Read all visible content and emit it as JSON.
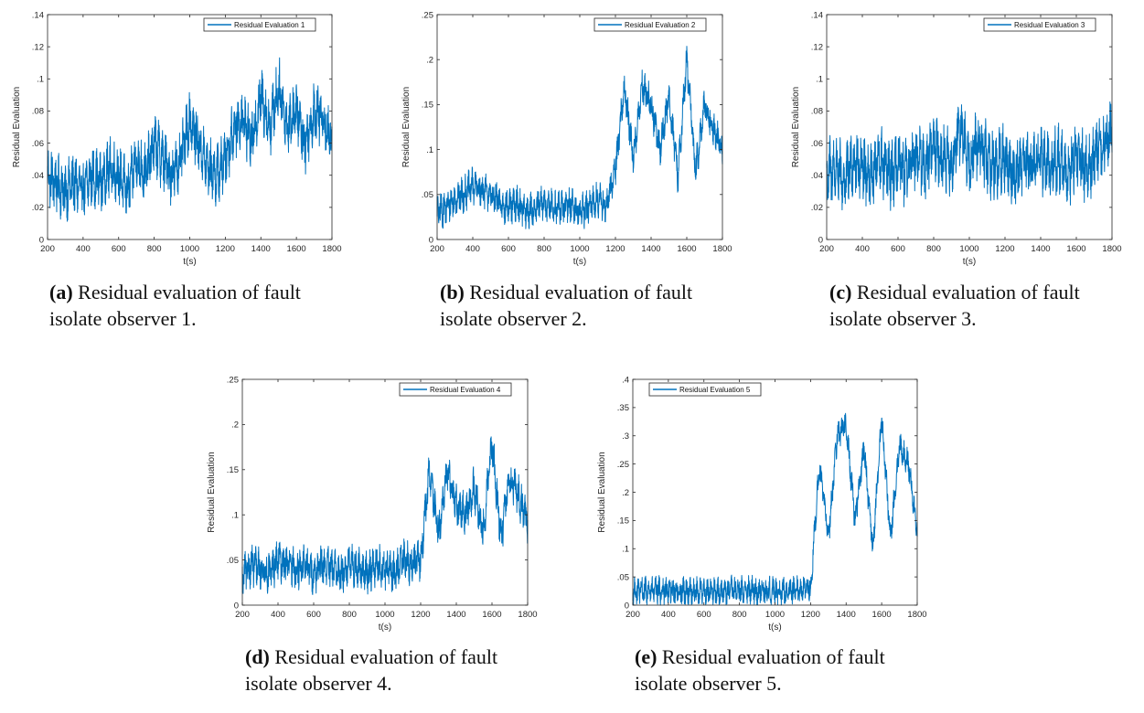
{
  "figure": {
    "captions": [
      {
        "label": "(a)",
        "text": "Residual evaluation of fault isolate observer 1."
      },
      {
        "label": "(b)",
        "text": "Residual evaluation of fault isolate observer 2."
      },
      {
        "label": "(c)",
        "text": "Residual evaluation of fault isolate observer 3."
      },
      {
        "label": "(d)",
        "text": "Residual evaluation of fault isolate observer 4."
      },
      {
        "label": "(e)",
        "text": "Residual evaluation of fault isolate observer 5."
      }
    ]
  },
  "colors": {
    "line": "#0072BD",
    "axis": "#262626"
  },
  "chart_data": [
    {
      "type": "line",
      "title": "",
      "legend": "Residual Evaluation 1",
      "legend_position": "top-right",
      "xlabel": "t(s)",
      "ylabel": "Residual Evaluation",
      "xlim": [
        200,
        1800
      ],
      "ylim": [
        0,
        0.14
      ],
      "xticks": [
        200,
        400,
        600,
        800,
        1000,
        1200,
        1400,
        1600,
        1800
      ],
      "yticks": [
        0,
        0.02,
        0.04,
        0.06,
        0.08,
        0.1,
        0.12,
        0.14
      ],
      "x": [
        200,
        250,
        300,
        350,
        400,
        450,
        500,
        550,
        600,
        650,
        700,
        750,
        800,
        850,
        900,
        950,
        1000,
        1050,
        1100,
        1150,
        1200,
        1250,
        1300,
        1350,
        1400,
        1450,
        1500,
        1550,
        1600,
        1650,
        1700,
        1750,
        1800
      ],
      "y": [
        0.04,
        0.035,
        0.03,
        0.035,
        0.03,
        0.04,
        0.035,
        0.045,
        0.04,
        0.03,
        0.05,
        0.04,
        0.06,
        0.05,
        0.04,
        0.05,
        0.075,
        0.06,
        0.045,
        0.04,
        0.05,
        0.07,
        0.075,
        0.06,
        0.09,
        0.07,
        0.095,
        0.07,
        0.08,
        0.06,
        0.08,
        0.075,
        0.06
      ],
      "noise": 0.013
    },
    {
      "type": "line",
      "title": "",
      "legend": "Residual Evaluation 2",
      "legend_position": "top-right",
      "xlabel": "t(s)",
      "ylabel": "Residual Evaluation",
      "xlim": [
        200,
        1800
      ],
      "ylim": [
        0,
        0.25
      ],
      "xticks": [
        200,
        400,
        600,
        800,
        1000,
        1200,
        1400,
        1600,
        1800
      ],
      "yticks": [
        0,
        0.05,
        0.1,
        0.15,
        0.2,
        0.25
      ],
      "x": [
        200,
        250,
        300,
        350,
        400,
        450,
        500,
        550,
        600,
        650,
        700,
        750,
        800,
        850,
        900,
        950,
        1000,
        1050,
        1100,
        1150,
        1200,
        1250,
        1300,
        1350,
        1400,
        1450,
        1500,
        1550,
        1600,
        1650,
        1700,
        1750,
        1800
      ],
      "y": [
        0.03,
        0.035,
        0.045,
        0.05,
        0.06,
        0.055,
        0.05,
        0.04,
        0.035,
        0.04,
        0.03,
        0.035,
        0.04,
        0.035,
        0.035,
        0.04,
        0.03,
        0.035,
        0.045,
        0.035,
        0.08,
        0.17,
        0.09,
        0.17,
        0.15,
        0.1,
        0.16,
        0.07,
        0.2,
        0.075,
        0.15,
        0.12,
        0.1
      ],
      "noise": 0.014
    },
    {
      "type": "line",
      "title": "",
      "legend": "Residual Evaluation 3",
      "legend_position": "top-right",
      "xlabel": "t(s)",
      "ylabel": "Residual Evaluation",
      "xlim": [
        200,
        1800
      ],
      "ylim": [
        0,
        0.14
      ],
      "xticks": [
        200,
        400,
        600,
        800,
        1000,
        1200,
        1400,
        1600,
        1800
      ],
      "yticks": [
        0,
        0.02,
        0.04,
        0.06,
        0.08,
        0.1,
        0.12,
        0.14
      ],
      "x": [
        200,
        250,
        300,
        350,
        400,
        450,
        500,
        550,
        600,
        650,
        700,
        750,
        800,
        850,
        900,
        950,
        1000,
        1050,
        1100,
        1150,
        1200,
        1250,
        1300,
        1350,
        1400,
        1450,
        1500,
        1550,
        1600,
        1650,
        1700,
        1750,
        1800
      ],
      "y": [
        0.04,
        0.045,
        0.035,
        0.05,
        0.045,
        0.04,
        0.05,
        0.04,
        0.045,
        0.04,
        0.055,
        0.045,
        0.06,
        0.05,
        0.045,
        0.07,
        0.05,
        0.06,
        0.05,
        0.045,
        0.05,
        0.04,
        0.05,
        0.045,
        0.05,
        0.045,
        0.05,
        0.04,
        0.055,
        0.045,
        0.05,
        0.06,
        0.065
      ],
      "noise": 0.015
    },
    {
      "type": "line",
      "title": "",
      "legend": "Residual Evaluation 4",
      "legend_position": "top-right",
      "xlabel": "t(s)",
      "ylabel": "Residual Evaluation",
      "xlim": [
        200,
        1800
      ],
      "ylim": [
        0,
        0.25
      ],
      "xticks": [
        200,
        400,
        600,
        800,
        1000,
        1200,
        1400,
        1600,
        1800
      ],
      "yticks": [
        0,
        0.05,
        0.1,
        0.15,
        0.2,
        0.25
      ],
      "x": [
        200,
        250,
        300,
        350,
        400,
        450,
        500,
        550,
        600,
        650,
        700,
        750,
        800,
        850,
        900,
        950,
        1000,
        1050,
        1100,
        1150,
        1200,
        1250,
        1300,
        1350,
        1400,
        1450,
        1500,
        1550,
        1600,
        1650,
        1700,
        1750,
        1800
      ],
      "y": [
        0.03,
        0.045,
        0.04,
        0.035,
        0.05,
        0.045,
        0.04,
        0.045,
        0.035,
        0.045,
        0.04,
        0.035,
        0.045,
        0.04,
        0.035,
        0.045,
        0.04,
        0.035,
        0.05,
        0.045,
        0.05,
        0.15,
        0.08,
        0.15,
        0.11,
        0.1,
        0.13,
        0.08,
        0.18,
        0.075,
        0.14,
        0.12,
        0.09
      ],
      "noise": 0.016
    },
    {
      "type": "line",
      "title": "",
      "legend": "Residual Evaluation 5",
      "legend_position": "top-left",
      "xlabel": "t(s)",
      "ylabel": "Residual Evaluation",
      "xlim": [
        200,
        1800
      ],
      "ylim": [
        0,
        0.4
      ],
      "xticks": [
        200,
        400,
        600,
        800,
        1000,
        1200,
        1400,
        1600,
        1800
      ],
      "yticks": [
        0,
        0.05,
        0.1,
        0.15,
        0.2,
        0.25,
        0.3,
        0.35,
        0.4
      ],
      "x": [
        200,
        250,
        300,
        350,
        400,
        450,
        500,
        550,
        600,
        650,
        700,
        750,
        800,
        850,
        900,
        950,
        1000,
        1050,
        1100,
        1150,
        1200,
        1250,
        1300,
        1350,
        1400,
        1450,
        1500,
        1550,
        1600,
        1650,
        1700,
        1750,
        1800
      ],
      "y": [
        0.025,
        0.025,
        0.025,
        0.025,
        0.025,
        0.025,
        0.025,
        0.025,
        0.025,
        0.025,
        0.025,
        0.025,
        0.025,
        0.025,
        0.025,
        0.025,
        0.025,
        0.025,
        0.025,
        0.025,
        0.03,
        0.25,
        0.12,
        0.3,
        0.32,
        0.15,
        0.28,
        0.1,
        0.33,
        0.12,
        0.28,
        0.25,
        0.13
      ],
      "noise": 0.018
    }
  ]
}
